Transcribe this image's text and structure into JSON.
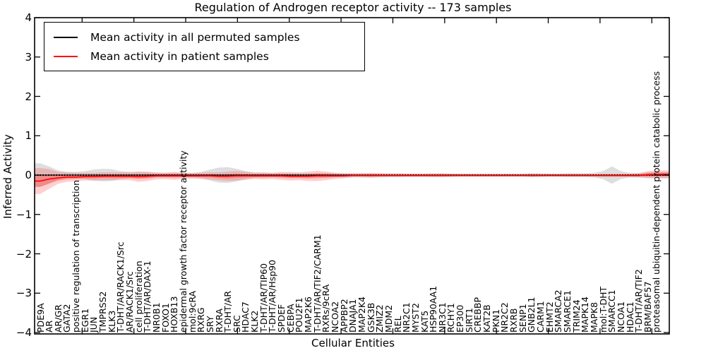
{
  "title": "Regulation of Androgen receptor activity -- 173 samples",
  "axes": {
    "xlabel": "Cellular Entities",
    "ylabel": "Inferred Activity",
    "y_ticks": [
      {
        "v": 4,
        "label": "4"
      },
      {
        "v": 3,
        "label": "3"
      },
      {
        "v": 2,
        "label": "2"
      },
      {
        "v": 1,
        "label": "1"
      },
      {
        "v": 0,
        "label": "0"
      },
      {
        "v": -1,
        "label": "−1"
      },
      {
        "v": -2,
        "label": "−2"
      },
      {
        "v": -3,
        "label": "−3"
      },
      {
        "v": -4,
        "label": "−4"
      }
    ]
  },
  "colors": {
    "permuted_line": "#000000",
    "patient_line": "#ff0000",
    "permuted_band": "#999999",
    "patient_band": "#ff4444",
    "axis": "#000000"
  },
  "chart_data": {
    "type": "line",
    "title": "Regulation of Androgen receptor activity -- 173 samples",
    "xlabel": "Cellular Entities",
    "ylabel": "Inferred Activity",
    "ylim": [
      -4,
      4
    ],
    "grid": false,
    "legend_position": "upper left",
    "categories": [
      "PDE9A",
      "AR",
      "AR/GR",
      "GATA2",
      "positive regulation of transcription",
      "EGR1",
      "JUN",
      "TMPRSS2",
      "KLK3",
      "T-DHT/AR/RACK1/Src",
      "AR/RACK1/Src",
      "cell proliferation",
      "T-DHT/AR/DAX-1",
      "NR0B1",
      "FOXO1",
      "HOXB13",
      "epidermal growth factor receptor activity",
      "mol:9cRA",
      "RXRG",
      "SRY",
      "RXRA",
      "T-DHT/AR",
      "SRC",
      "HDAC7",
      "KLK2",
      "T-DHT/AR/TIP60",
      "T-DHT/AR/Hsp90",
      "SPDEF",
      "CEBPA",
      "POU2F1",
      "MAP2K6",
      "T-DHT/AR/TIF2/CARM1",
      "RXRs/9cRA",
      "NCOA2",
      "APPBP2",
      "DNAJA1",
      "MAP2K4",
      "GSK3B",
      "ZMIZ2",
      "MDM2",
      "REL",
      "NR2C1",
      "MYST2",
      "KAT5",
      "HSP90AA1",
      "NR3C1",
      "RCHY1",
      "EP300",
      "SIRT1",
      "CREBBP",
      "KAT2B",
      "PKN1",
      "NR2C2",
      "RXRB",
      "SENP1",
      "GNB2L1",
      "CARM1",
      "EHMT2",
      "SMARCA2",
      "SMARCE1",
      "TRIM24",
      "MAPK14",
      "MAPK8",
      "mol:T-DHT",
      "SMARCC1",
      "NCOA1",
      "HDAC1",
      "T-DHT/AR/TIF2",
      "BRM/BAF57",
      "proteasomal ubiquitin-dependent protein catabolic process"
    ],
    "series": [
      {
        "name": "Mean activity in all permuted samples",
        "color": "#000000",
        "values": [
          0,
          0,
          0,
          0,
          0,
          0,
          0,
          0,
          0,
          0,
          0,
          0,
          0,
          0,
          0,
          0,
          0,
          0,
          0,
          0,
          0,
          0,
          0,
          0,
          0,
          0,
          0,
          0,
          0,
          0,
          0,
          0,
          0,
          0,
          0,
          0,
          0,
          0,
          0,
          0,
          0,
          0,
          0,
          0,
          0,
          0,
          0,
          0,
          0,
          0,
          0,
          0,
          0,
          0,
          0,
          0,
          0,
          0,
          0,
          0,
          0,
          0,
          0,
          0,
          0,
          0,
          0,
          0,
          0,
          0
        ],
        "std": [
          0.3,
          0.22,
          0.12,
          0.08,
          0.08,
          0.1,
          0.14,
          0.16,
          0.15,
          0.1,
          0.08,
          0.08,
          0.07,
          0.06,
          0.06,
          0.06,
          0.06,
          0.06,
          0.08,
          0.14,
          0.19,
          0.2,
          0.16,
          0.1,
          0.07,
          0.06,
          0.05,
          0.05,
          0.05,
          0.05,
          0.05,
          0.05,
          0.06,
          0.05,
          0.05,
          0.05,
          0.05,
          0.05,
          0.05,
          0.05,
          0.05,
          0.04,
          0.04,
          0.04,
          0.05,
          0.05,
          0.04,
          0.04,
          0.04,
          0.04,
          0.04,
          0.04,
          0.04,
          0.04,
          0.04,
          0.05,
          0.05,
          0.04,
          0.04,
          0.05,
          0.05,
          0.05,
          0.06,
          0.1,
          0.22,
          0.1,
          0.06,
          0.06,
          0.07,
          0.08
        ]
      },
      {
        "name": "Mean activity in patient samples",
        "color": "#ff0000",
        "values": [
          -0.15,
          -0.1,
          -0.07,
          -0.05,
          -0.05,
          -0.04,
          -0.04,
          -0.03,
          -0.03,
          -0.03,
          -0.03,
          -0.04,
          -0.03,
          -0.02,
          -0.02,
          -0.02,
          -0.02,
          -0.02,
          -0.02,
          -0.02,
          -0.03,
          -0.03,
          -0.02,
          -0.02,
          -0.02,
          -0.02,
          -0.02,
          -0.02,
          -0.03,
          -0.03,
          -0.03,
          -0.02,
          -0.02,
          -0.02,
          -0.02,
          -0.01,
          -0.01,
          -0.01,
          -0.01,
          -0.01,
          -0.01,
          -0.01,
          -0.01,
          -0.01,
          -0.01,
          -0.01,
          -0.01,
          -0.01,
          -0.01,
          -0.01,
          -0.01,
          -0.01,
          -0.01,
          -0.01,
          -0.01,
          -0.01,
          -0.01,
          -0.01,
          -0.01,
          -0.01,
          -0.01,
          -0.01,
          -0.01,
          -0.01,
          -0.01,
          -0.01,
          -0.01,
          -0.01,
          0.01,
          0.02
        ],
        "std": [
          0.33,
          0.25,
          0.15,
          0.12,
          0.11,
          0.1,
          0.1,
          0.1,
          0.1,
          0.1,
          0.1,
          0.13,
          0.12,
          0.09,
          0.08,
          0.1,
          0.08,
          0.07,
          0.08,
          0.09,
          0.1,
          0.12,
          0.12,
          0.1,
          0.08,
          0.09,
          0.08,
          0.1,
          0.11,
          0.1,
          0.12,
          0.13,
          0.11,
          0.08,
          0.06,
          0.05,
          0.05,
          0.06,
          0.05,
          0.04,
          0.04,
          0.04,
          0.04,
          0.04,
          0.04,
          0.04,
          0.04,
          0.03,
          0.03,
          0.03,
          0.03,
          0.03,
          0.03,
          0.03,
          0.03,
          0.04,
          0.03,
          0.03,
          0.03,
          0.03,
          0.03,
          0.03,
          0.03,
          0.04,
          0.04,
          0.04,
          0.04,
          0.05,
          0.09,
          0.1
        ]
      }
    ]
  }
}
